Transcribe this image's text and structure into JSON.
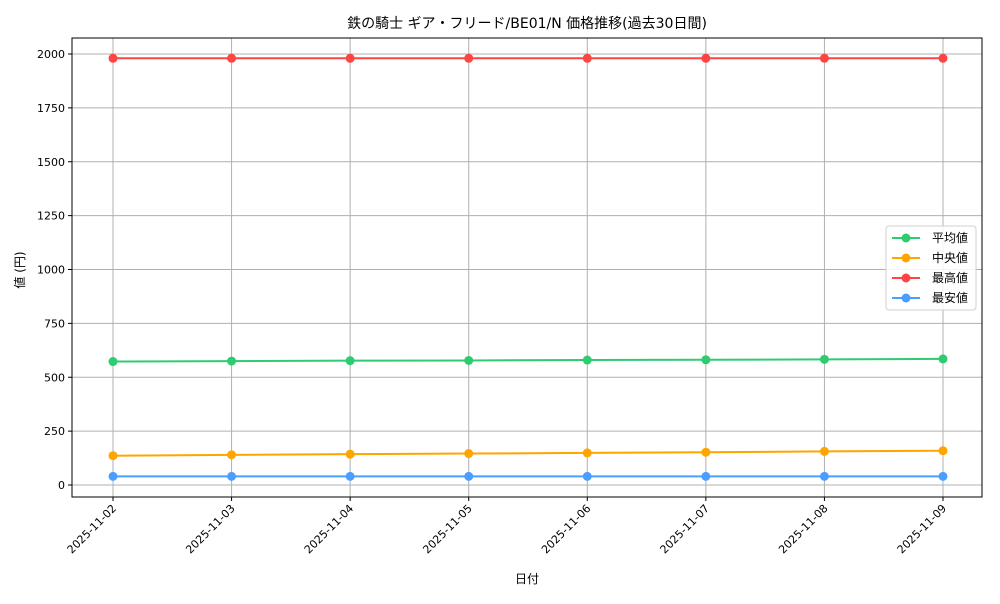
{
  "chart_data": {
    "type": "line",
    "title": "鉄の騎士 ギア・フリード/BE01/N 価格推移(過去30日間)",
    "xlabel": "日付",
    "ylabel": "値 (円)",
    "categories": [
      "2025-11-02",
      "2025-11-03",
      "2025-11-04",
      "2025-11-05",
      "2025-11-06",
      "2025-11-07",
      "2025-11-08",
      "2025-11-09"
    ],
    "yticks": [
      0,
      250,
      500,
      750,
      1000,
      1250,
      1500,
      1750,
      2000
    ],
    "ylim": [
      -60,
      2070
    ],
    "grid": true,
    "legend_position": "center right",
    "series": [
      {
        "name": "平均値",
        "color": "#2ecc71",
        "values": [
          573,
          575,
          577,
          578,
          580,
          581,
          583,
          585
        ]
      },
      {
        "name": "中央値",
        "color": "#ffa500",
        "values": [
          136,
          140,
          143,
          146,
          149,
          152,
          156,
          159
        ]
      },
      {
        "name": "最高値",
        "color": "#ff4444",
        "values": [
          1980,
          1980,
          1980,
          1980,
          1980,
          1980,
          1980,
          1980
        ]
      },
      {
        "name": "最安値",
        "color": "#4a9eff",
        "values": [
          40,
          40,
          40,
          40,
          40,
          40,
          40,
          40
        ]
      }
    ]
  }
}
